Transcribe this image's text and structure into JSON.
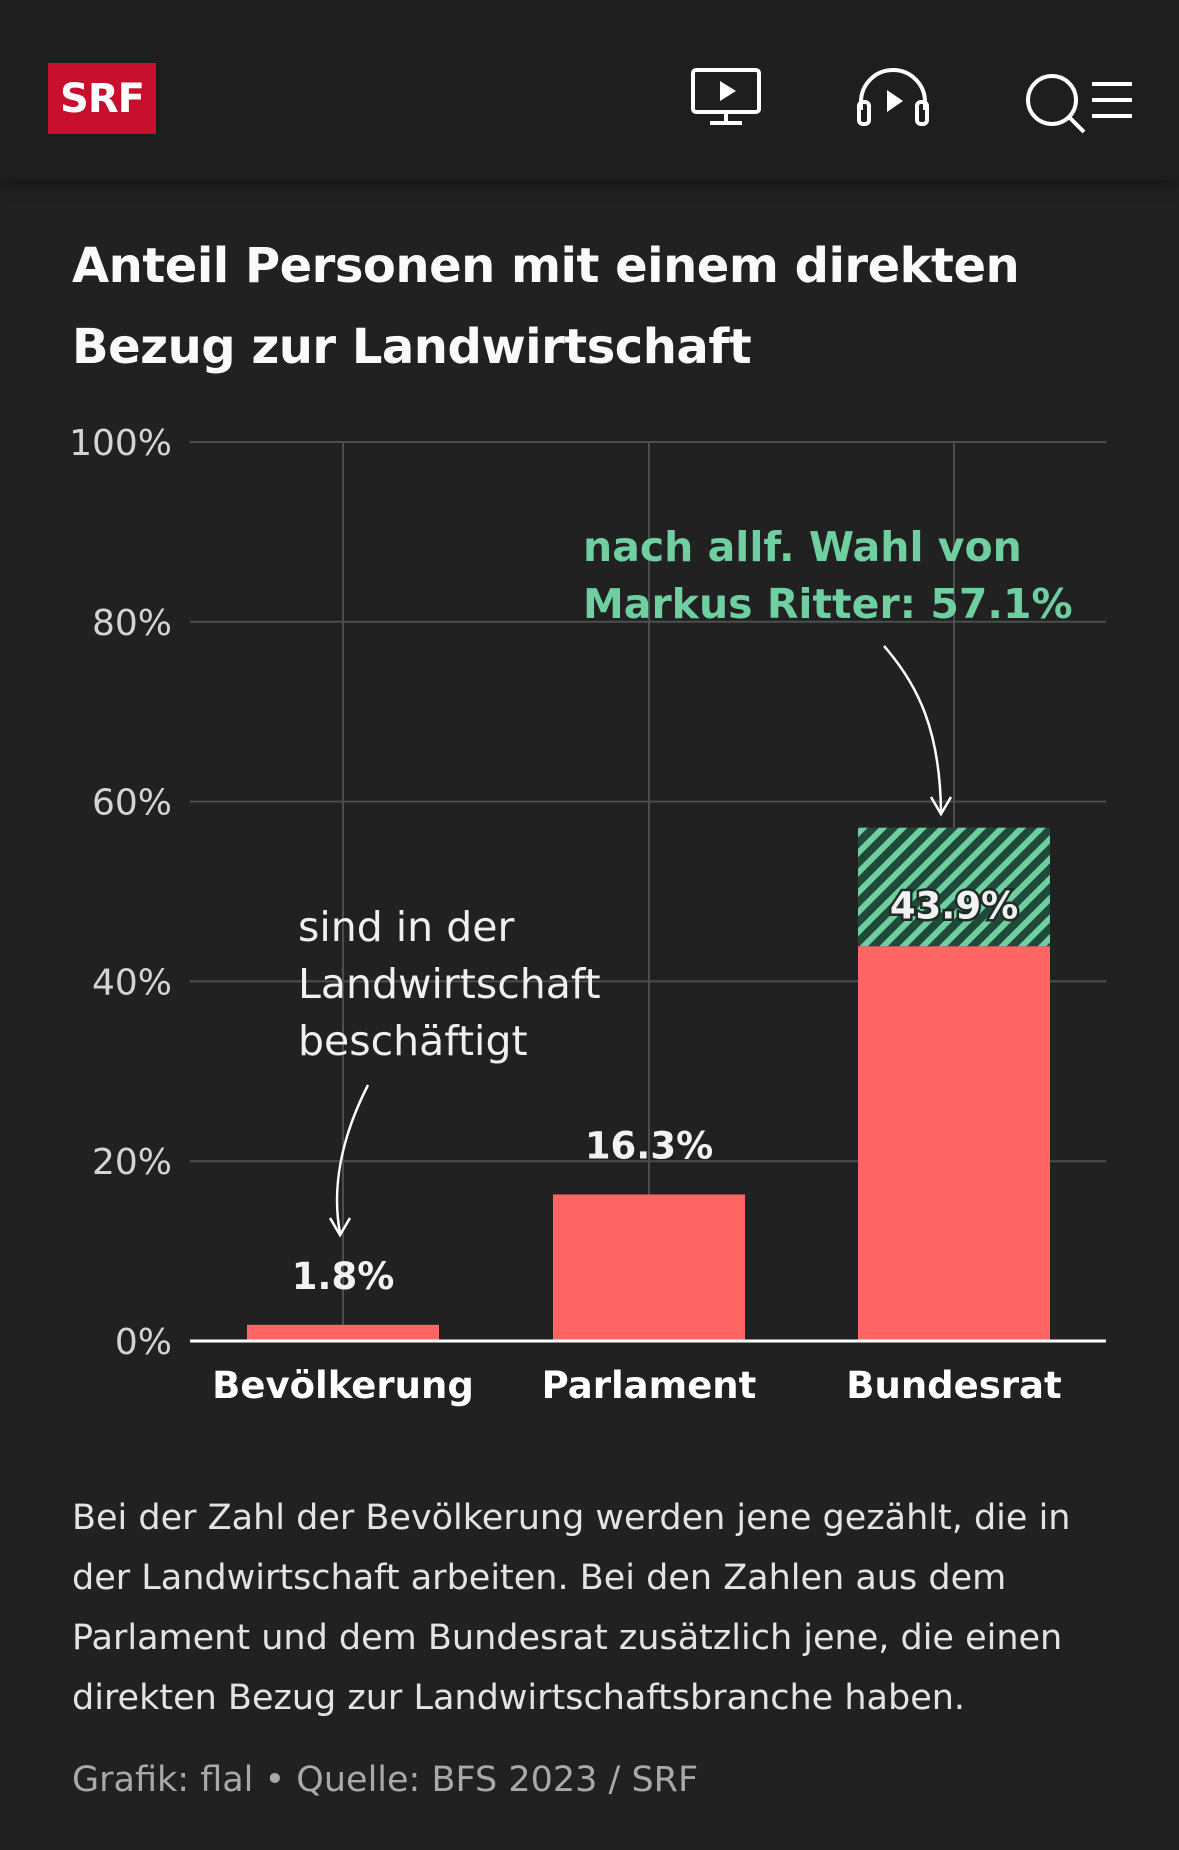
{
  "header": {
    "logo_text": "SRF",
    "icons": [
      "tv-play-icon",
      "headphones-play-icon",
      "search-menu-icon"
    ]
  },
  "chart_data": {
    "type": "bar",
    "title": "Anteil Personen mit einem direkten Bezug zur Landwirtschaft",
    "categories": [
      "Bevölkerung",
      "Parlament",
      "Bundesrat"
    ],
    "values": [
      1.8,
      16.3,
      43.9
    ],
    "value_labels": [
      "1.8%",
      "16.3%",
      "43.9%"
    ],
    "extension": {
      "category": "Bundesrat",
      "value": 57.1,
      "pattern": "hatched"
    },
    "ylim": [
      0,
      100
    ],
    "yticks": [
      0,
      20,
      40,
      60,
      80,
      100
    ],
    "ytick_labels": [
      "0%",
      "20%",
      "40%",
      "60%",
      "80%",
      "100%"
    ],
    "grid": true,
    "annotations": [
      {
        "target": "Bevölkerung",
        "lines": [
          "sind in der",
          "Landwirtschaft",
          "beschäftigt"
        ]
      },
      {
        "target": "Bundesrat",
        "lines": [
          "nach allf. Wahl von",
          "Markus Ritter: 57.1%"
        ]
      }
    ],
    "colors": {
      "bar": "#ff6565",
      "accent": "#6fcfa0",
      "grid": "#4e4d4d",
      "baseline": "#ffffff"
    }
  },
  "footer": {
    "description": "Bei der Zahl der Bevölkerung werden jene gezählt, die in der Landwirtschaft arbeiten. Bei den Zahlen aus dem Parlament und dem Bundesrat zusätzlich jene, die einen direkten Bezug zur Landwirtschaftsbranche haben.",
    "source": "Grafik: flal • Quelle: BFS 2023 / SRF"
  }
}
